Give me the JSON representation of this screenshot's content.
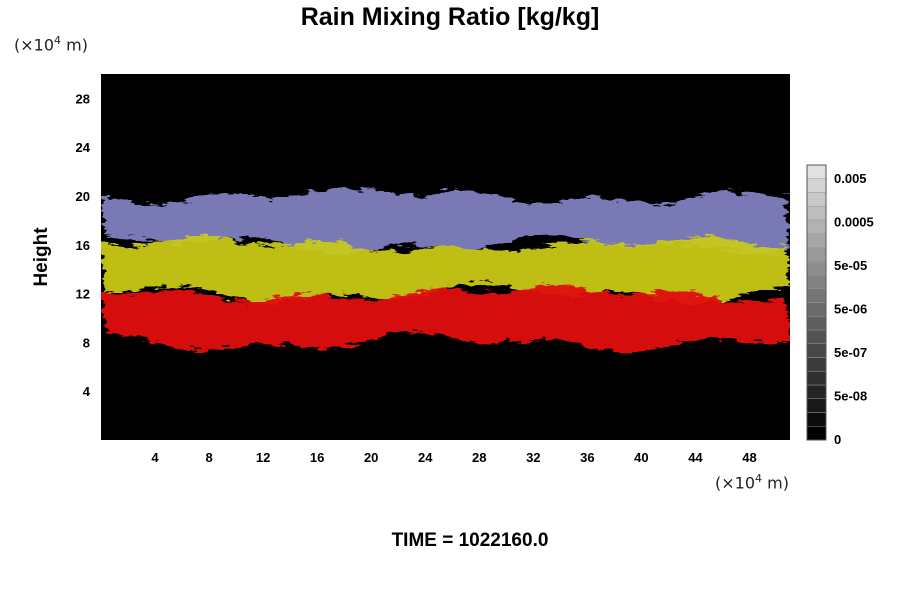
{
  "chart_data": {
    "type": "heatmap",
    "title": "Rain Mixing Ratio [kg/kg]",
    "ylabel": "Height",
    "xlabel": "",
    "x_unit": "(×10",
    "x_unit_exp": "4",
    "x_unit_tail": " m)",
    "y_unit": "(×10",
    "y_unit_exp": "4",
    "y_unit_tail": " m)",
    "xlim": [
      0,
      51
    ],
    "ylim": [
      0,
      30
    ],
    "x_ticks": [
      4,
      8,
      12,
      16,
      20,
      24,
      28,
      32,
      36,
      40,
      44,
      48
    ],
    "y_ticks": [
      4,
      8,
      12,
      16,
      20,
      24,
      28
    ],
    "layers": [
      {
        "name": "upper",
        "color": "#8080c0",
        "y_range": [
          16,
          20
        ]
      },
      {
        "name": "middle",
        "color": "#c8c818",
        "y_range": [
          12,
          16
        ]
      },
      {
        "name": "lower",
        "color": "#e01010",
        "y_range": [
          8,
          12
        ]
      }
    ],
    "colorbar": {
      "labels": [
        "0.005",
        "0.0005",
        "5e-05",
        "5e-06",
        "5e-07",
        "5e-08",
        "0"
      ],
      "levels": 20
    }
  },
  "footer": {
    "time_label": "TIME = 1022160.0"
  }
}
